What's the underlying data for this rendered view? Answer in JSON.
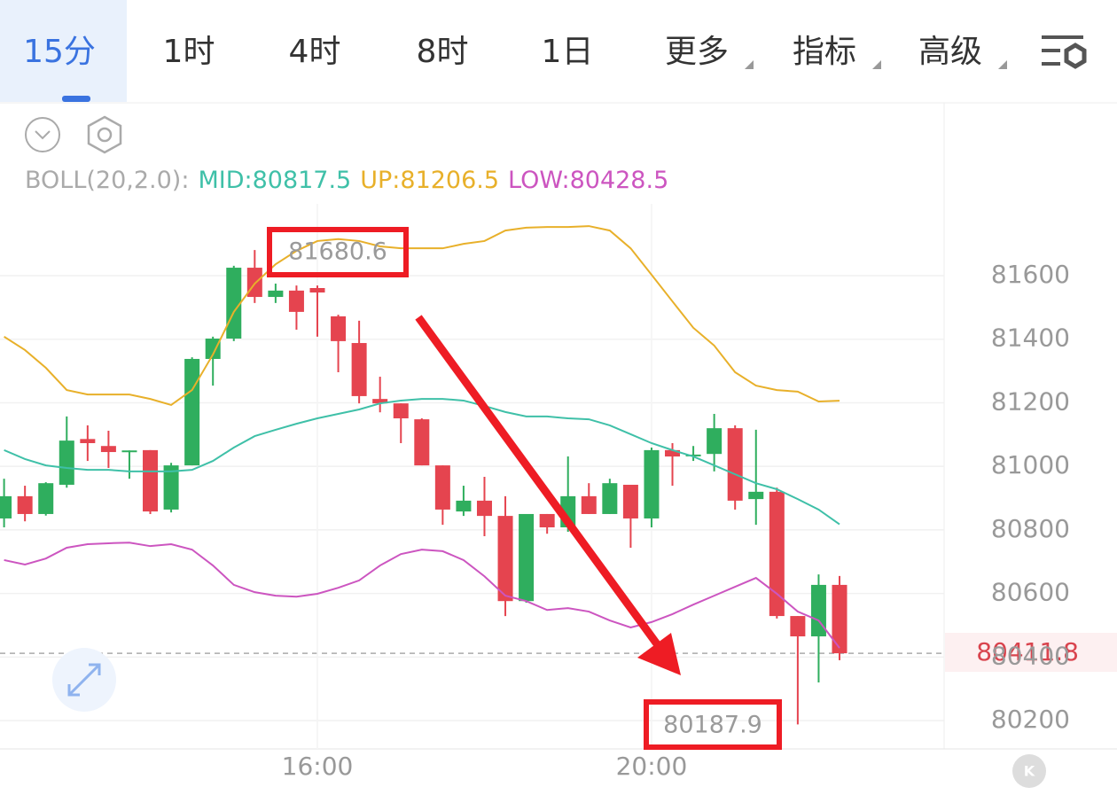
{
  "tabs": [
    "15分",
    "1时",
    "4时",
    "8时",
    "1日",
    "更多",
    "指标",
    "高级"
  ],
  "chart_data": {
    "type": "candlestick",
    "indicator": "BOLL(20,2.0):",
    "categories": [
      null,
      null,
      null,
      null,
      null,
      null,
      null,
      null,
      null,
      null,
      null,
      null,
      null,
      null,
      null,
      "16:00",
      null,
      null,
      null,
      null,
      null,
      null,
      null,
      null,
      null,
      null,
      null,
      null,
      null,
      null,
      null,
      "20:00",
      null,
      null,
      null,
      null,
      null,
      null,
      null,
      null,
      null
    ],
    "open": [
      80836,
      80906,
      80850,
      80942,
      81086,
      81064,
      81048,
      81051,
      80864,
      81003,
      81338,
      81402,
      81625,
      81533,
      81553,
      81561,
      81472,
      81388,
      81212,
      81198,
      81148,
      81003,
      80858,
      80892,
      80844,
      80576,
      80850,
      80808,
      80906,
      80850,
      80942,
      80836,
      81051,
      81035,
      81039,
      81120,
      80897,
      80920,
      80529,
      80465,
      80627
    ],
    "high": [
      80961,
      80939,
      80950,
      81157,
      81129,
      81112,
      81050,
      81051,
      81011,
      81343,
      81408,
      81631,
      81680.6,
      81575,
      81569,
      81569,
      81477,
      81458,
      81282,
      81198,
      81151,
      81003,
      80939,
      80967,
      80906,
      80850,
      80850,
      81031,
      80947,
      80961,
      80942,
      81059,
      81073,
      81064,
      81165,
      81129,
      81115,
      80933,
      80529,
      80660,
      80655
    ],
    "low": [
      80808,
      80827,
      80845,
      80933,
      81017,
      80995,
      80961,
      80850,
      80855,
      81003,
      81254,
      81394,
      81514,
      81514,
      81430,
      81408,
      81296,
      81198,
      81170,
      81073,
      81003,
      80816,
      80844,
      80780,
      80529,
      80571,
      80788,
      80794,
      80850,
      80850,
      80744,
      80808,
      80939,
      81017,
      80984,
      80864,
      80816,
      80521,
      80187.9,
      80320,
      80390
    ],
    "close": [
      80906,
      80850,
      80947,
      81081,
      81073,
      81045,
      81050,
      80858,
      81003,
      81338,
      81402,
      81625,
      81533,
      81553,
      81486,
      81547,
      81394,
      81221,
      81198,
      81151,
      81003,
      80864,
      80892,
      80844,
      80576,
      80850,
      80808,
      80906,
      80850,
      80947,
      80836,
      81051,
      81031,
      81037,
      81120,
      80892,
      80920,
      80529,
      80465,
      80627,
      80411.8
    ],
    "up_color": "#2fae5e",
    "down_color": "#e5444f",
    "series": [
      {
        "name": "MID:80817.5",
        "color": "#3fc0a8",
        "values": [
          81051,
          81023,
          81003,
          80995,
          80989,
          80989,
          80984,
          80984,
          80984,
          80989,
          81017,
          81059,
          81095,
          81115,
          81134,
          81151,
          81165,
          81179,
          81198,
          81207,
          81212,
          81212,
          81207,
          81190,
          81171,
          81157,
          81157,
          81151,
          81148,
          81129,
          81101,
          81073,
          81051,
          81031,
          81003,
          80975,
          80947,
          80928,
          80897,
          80864,
          80817.5
        ]
      },
      {
        "name": "UP:81206.5",
        "color": "#e8b02a",
        "values": [
          81408,
          81366,
          81310,
          81240,
          81226,
          81226,
          81226,
          81212,
          81193,
          81240,
          81352,
          81486,
          81575,
          81636,
          81678,
          81709,
          81715,
          81709,
          81692,
          81686,
          81686,
          81686,
          81700,
          81709,
          81742,
          81751,
          81753,
          81753,
          81756,
          81742,
          81686,
          81603,
          81519,
          81436,
          81380,
          81296,
          81254,
          81240,
          81235,
          81204,
          81206.5
        ]
      },
      {
        "name": "LOW:80428.5",
        "color": "#cc55c0",
        "values": [
          80705,
          80691,
          80710,
          80744,
          80755,
          80758,
          80760,
          80749,
          80755,
          80738,
          80688,
          80627,
          80604,
          80593,
          80590,
          80599,
          80618,
          80641,
          80688,
          80724,
          80738,
          80733,
          80705,
          80654,
          80593,
          80576,
          80548,
          80554,
          80543,
          80515,
          80493,
          80510,
          80535,
          80565,
          80593,
          80621,
          80649,
          80599,
          80543,
          80515,
          80428.5
        ]
      }
    ],
    "ylim": [
      80100,
      81800
    ],
    "yticks": [
      80200,
      80400,
      80600,
      80800,
      81000,
      81200,
      81400,
      81600
    ],
    "grid": true,
    "last_price": 80411.8,
    "max_label": 81680.6,
    "min_label": 80187.9
  }
}
